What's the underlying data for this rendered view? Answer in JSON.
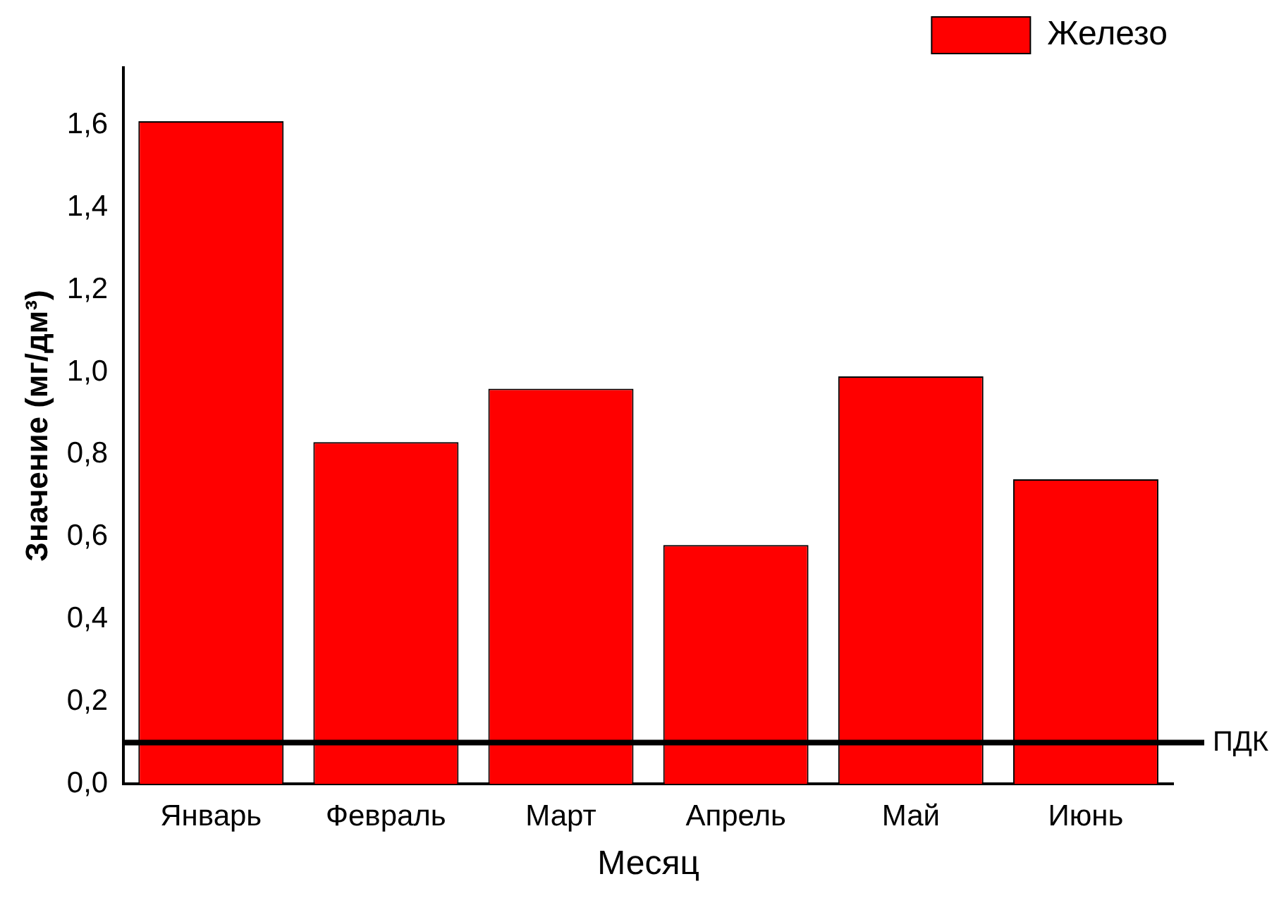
{
  "chart_data": {
    "type": "bar",
    "xlabel": "Месяц",
    "ylabel": "Значение (мг/дм³)",
    "categories": [
      "Январь",
      "Февраль",
      "Март",
      "Апрель",
      "Май",
      "Июнь"
    ],
    "series": [
      {
        "name": "Железо",
        "color": "#ff0000",
        "values": [
          1.61,
          0.83,
          0.96,
          0.58,
          0.99,
          0.74
        ]
      }
    ],
    "ylim": [
      0,
      1.74
    ],
    "yticks": [
      {
        "value": 0,
        "label": "0,0"
      },
      {
        "value": 0.2,
        "label": "0,2"
      },
      {
        "value": 0.4,
        "label": "0,4"
      },
      {
        "value": 0.6,
        "label": "0,6"
      },
      {
        "value": 0.8,
        "label": "0,8"
      },
      {
        "value": 1.0,
        "label": "1,0"
      },
      {
        "value": 1.2,
        "label": "1,2"
      },
      {
        "value": 1.4,
        "label": "1,4"
      },
      {
        "value": 1.6,
        "label": "1,6"
      }
    ],
    "ref_lines": [
      {
        "axis": "y",
        "value": 0.1,
        "label": "ПДК",
        "color": "#000000"
      }
    ],
    "grid": false,
    "legend": "top right"
  }
}
